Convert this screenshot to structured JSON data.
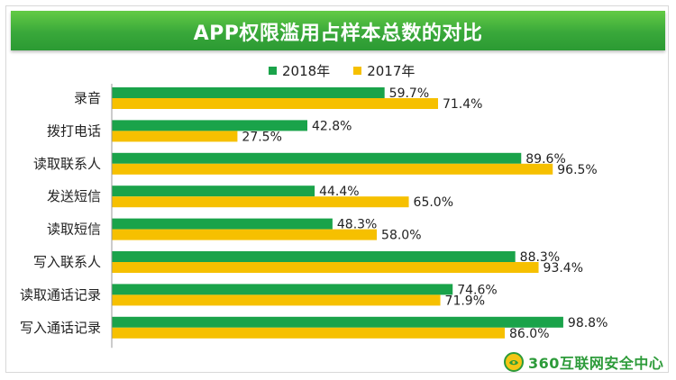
{
  "chart_data": {
    "type": "bar",
    "orientation": "horizontal",
    "title": "APP权限滥用占样本总数的对比",
    "categories": [
      "录音",
      "拨打电话",
      "读取联系人",
      "发送短信",
      "读取短信",
      "写入联系人",
      "读取通话记录",
      "写入通话记录"
    ],
    "series": [
      {
        "name": "2018年",
        "color": "#1aa34a",
        "values": [
          59.7,
          42.8,
          89.6,
          44.4,
          48.3,
          88.3,
          74.6,
          98.8
        ],
        "labels": [
          "59.7%",
          "42.8%",
          "89.6%",
          "44.4%",
          "48.3%",
          "88.3%",
          "74.6%",
          "98.8%"
        ]
      },
      {
        "name": "2017年",
        "color": "#f6c000",
        "values": [
          71.4,
          27.5,
          96.5,
          65.0,
          58.0,
          93.4,
          71.9,
          86.0
        ],
        "labels": [
          "71.4%",
          "27.5%",
          "96.5%",
          "65.0%",
          "58.0%",
          "93.4%",
          "71.9%",
          "86.0%"
        ]
      }
    ],
    "xlim": [
      0,
      100
    ],
    "grid": false,
    "legend_position": "top-center"
  },
  "branding": {
    "logo_text": "360互联网安全中心",
    "logo_color": "#2d9b3a"
  }
}
